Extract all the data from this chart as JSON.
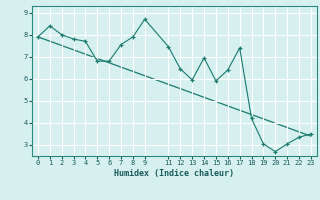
{
  "xlabel": "Humidex (Indice chaleur)",
  "background_color": "#d6f0f0",
  "grid_color": "#ffffff",
  "line_color": "#1a7a6e",
  "x_data": [
    0,
    1,
    2,
    3,
    4,
    5,
    6,
    7,
    8,
    9,
    11,
    12,
    13,
    14,
    15,
    16,
    17,
    18,
    19,
    20,
    21,
    22,
    23
  ],
  "y_data": [
    7.9,
    8.4,
    8.0,
    7.8,
    7.7,
    6.8,
    6.8,
    7.55,
    7.9,
    8.7,
    7.45,
    6.45,
    5.95,
    6.95,
    5.9,
    6.4,
    7.4,
    4.2,
    3.05,
    2.7,
    3.05,
    3.35,
    3.5
  ],
  "trend_x": [
    0,
    23
  ],
  "trend_y": [
    7.9,
    3.4
  ],
  "xlim": [
    -0.5,
    23.5
  ],
  "ylim": [
    2.5,
    9.3
  ],
  "yticks": [
    3,
    4,
    5,
    6,
    7,
    8,
    9
  ],
  "xticks": [
    0,
    1,
    2,
    3,
    4,
    5,
    6,
    7,
    8,
    9,
    11,
    12,
    13,
    14,
    15,
    16,
    17,
    18,
    19,
    20,
    21,
    22,
    23
  ],
  "xlabel_fontsize": 6.0,
  "tick_fontsize": 5.0
}
